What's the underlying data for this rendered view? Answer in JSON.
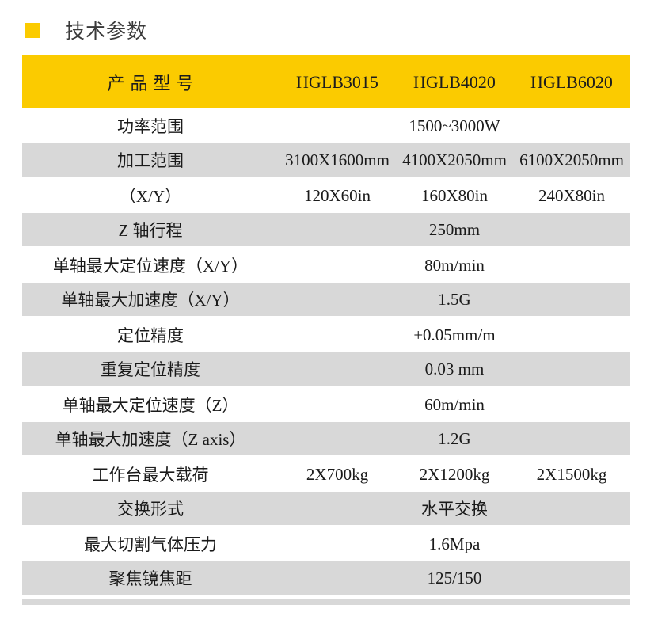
{
  "section": {
    "title": "技术参数",
    "bullet_color": "#FBCB00"
  },
  "table": {
    "header": {
      "bg_color": "#FBCB00",
      "columns": [
        "产品型号",
        "HGLB3015",
        "HGLB4020",
        "HGLB6020"
      ]
    },
    "shade_color": "#D8D8D8",
    "rows": [
      {
        "label": "功率范围",
        "values": [
          "1500~3000W"
        ],
        "span": true,
        "shade": false
      },
      {
        "label": "加工范围",
        "values": [
          "3100X1600mm",
          "4100X2050mm",
          "6100X2050mm"
        ],
        "span": false,
        "shade": true
      },
      {
        "label": "（X/Y）",
        "values": [
          "120X60in",
          "160X80in",
          "240X80in"
        ],
        "span": false,
        "shade": false
      },
      {
        "label": "Z 轴行程",
        "values": [
          "250mm"
        ],
        "span": true,
        "shade": true
      },
      {
        "label": "单轴最大定位速度（X/Y）",
        "values": [
          "80m/min"
        ],
        "span": true,
        "shade": false
      },
      {
        "label": "单轴最大加速度（X/Y）",
        "values": [
          "1.5G"
        ],
        "span": true,
        "shade": true
      },
      {
        "label": "定位精度",
        "values": [
          "±0.05mm/m"
        ],
        "span": true,
        "shade": false
      },
      {
        "label": "重复定位精度",
        "values": [
          "0.03 mm"
        ],
        "span": true,
        "shade": true
      },
      {
        "label": "单轴最大定位速度（Z）",
        "values": [
          "60m/min"
        ],
        "span": true,
        "shade": false
      },
      {
        "label": "单轴最大加速度（Z axis）",
        "values": [
          "1.2G"
        ],
        "span": true,
        "shade": true
      },
      {
        "label": "工作台最大载荷",
        "values": [
          "2X700kg",
          "2X1200kg",
          "2X1500kg"
        ],
        "span": false,
        "shade": false
      },
      {
        "label": "交换形式",
        "values": [
          "水平交换"
        ],
        "span": true,
        "shade": true
      },
      {
        "label": "最大切割气体压力",
        "values": [
          "1.6Mpa"
        ],
        "span": true,
        "shade": false
      },
      {
        "label": "聚焦镜焦距",
        "values": [
          "125/150"
        ],
        "span": true,
        "shade": true
      }
    ]
  }
}
